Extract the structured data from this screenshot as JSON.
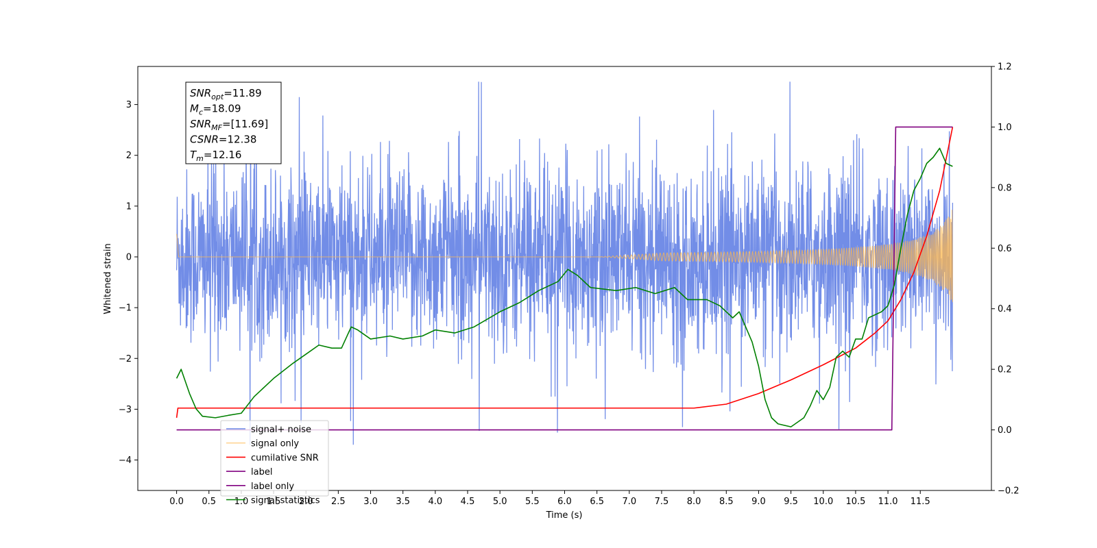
{
  "chart_data": {
    "type": "line",
    "xlabel": "Time (s)",
    "ylabel": "Whitened strain",
    "xlim": [
      -0.6,
      12.6
    ],
    "ylim_left": [
      -4.6,
      3.75
    ],
    "ylim_right": [
      -0.2,
      1.2
    ],
    "x_ticks": [
      "0.0",
      "0.5",
      "1.0",
      "1.5",
      "2.0",
      "2.5",
      "3.0",
      "3.5",
      "4.0",
      "4.5",
      "5.0",
      "5.5",
      "6.0",
      "6.5",
      "7.0",
      "7.5",
      "8.0",
      "8.5",
      "9.0",
      "9.5",
      "10.0",
      "10.5",
      "11.0",
      "11.5"
    ],
    "y_ticks_left": [
      "−4",
      "−3",
      "−2",
      "−1",
      "0",
      "1",
      "2",
      "3"
    ],
    "y_ticks_right": [
      "−0.2",
      "0.0",
      "0.2",
      "0.4",
      "0.6",
      "0.8",
      "1.0",
      "1.2"
    ],
    "annotation": [
      {
        "base": "SNR",
        "sub": "opt",
        "value": "=11.89"
      },
      {
        "base": "M",
        "sub": "c",
        "value": "=18.09"
      },
      {
        "base": "SNR",
        "sub": "MF",
        "value": "=[11.69]"
      },
      {
        "base": "CSNR",
        "sub": "",
        "value": "=12.38"
      },
      {
        "base": "T",
        "sub": "m",
        "value": "=12.16"
      }
    ],
    "legend_position": "lower-left",
    "series": [
      {
        "name": "signal+ noise",
        "axis": "left",
        "color": "#6a87e6",
        "description_range": [
          -3.7,
          3.45
        ],
        "x_range": [
          0.0,
          12.0
        ]
      },
      {
        "name": "signal only",
        "axis": "left",
        "color": "#ffb84d",
        "x_range": [
          0.0,
          12.0
        ],
        "envelope_max": 0.95
      },
      {
        "name": "cumilative SNR",
        "axis": "right",
        "color": "#ff0000",
        "x": [
          0.0,
          0.02,
          8.0,
          8.5,
          9.0,
          9.5,
          10.0,
          10.5,
          10.8,
          11.0,
          11.2,
          11.4,
          11.6,
          11.8,
          12.0
        ],
        "y": [
          0.04,
          0.072,
          0.072,
          0.085,
          0.12,
          0.165,
          0.215,
          0.27,
          0.32,
          0.36,
          0.43,
          0.52,
          0.64,
          0.79,
          1.0
        ]
      },
      {
        "name": "label",
        "axis": "right",
        "color": "#800080",
        "x": [
          0.0,
          11.06,
          11.12,
          12.0
        ],
        "y": [
          0.0,
          0.0,
          1.0,
          1.0
        ]
      },
      {
        "name": "label only",
        "axis": "right",
        "color": "#800080",
        "hidden": true,
        "x": [],
        "y": []
      },
      {
        "name": "signal statistics",
        "axis": "right",
        "color": "#008000",
        "x": [
          0.0,
          0.07,
          0.2,
          0.3,
          0.4,
          0.6,
          0.8,
          1.0,
          1.2,
          1.5,
          1.8,
          2.0,
          2.2,
          2.4,
          2.55,
          2.7,
          2.8,
          3.0,
          3.3,
          3.5,
          3.8,
          4.0,
          4.3,
          4.6,
          5.0,
          5.3,
          5.6,
          5.9,
          6.05,
          6.2,
          6.4,
          6.8,
          7.1,
          7.4,
          7.7,
          7.9,
          8.2,
          8.4,
          8.6,
          8.7,
          8.8,
          8.9,
          9.0,
          9.1,
          9.2,
          9.3,
          9.5,
          9.7,
          9.8,
          9.9,
          10.0,
          10.1,
          10.2,
          10.3,
          10.4,
          10.5,
          10.6,
          10.7,
          10.8,
          10.9,
          11.0,
          11.1,
          11.2,
          11.3,
          11.4,
          11.5,
          11.6,
          11.7,
          11.8,
          11.9,
          12.0
        ],
        "y": [
          0.17,
          0.2,
          0.12,
          0.07,
          0.045,
          0.04,
          0.048,
          0.055,
          0.11,
          0.17,
          0.22,
          0.25,
          0.28,
          0.27,
          0.27,
          0.34,
          0.33,
          0.3,
          0.31,
          0.3,
          0.31,
          0.33,
          0.32,
          0.34,
          0.39,
          0.42,
          0.46,
          0.49,
          0.53,
          0.51,
          0.47,
          0.46,
          0.47,
          0.45,
          0.47,
          0.43,
          0.43,
          0.41,
          0.37,
          0.39,
          0.34,
          0.29,
          0.21,
          0.1,
          0.04,
          0.02,
          0.01,
          0.04,
          0.08,
          0.13,
          0.1,
          0.14,
          0.24,
          0.26,
          0.24,
          0.3,
          0.3,
          0.37,
          0.38,
          0.39,
          0.41,
          0.48,
          0.6,
          0.71,
          0.79,
          0.83,
          0.88,
          0.9,
          0.93,
          0.88,
          0.87
        ]
      }
    ]
  }
}
